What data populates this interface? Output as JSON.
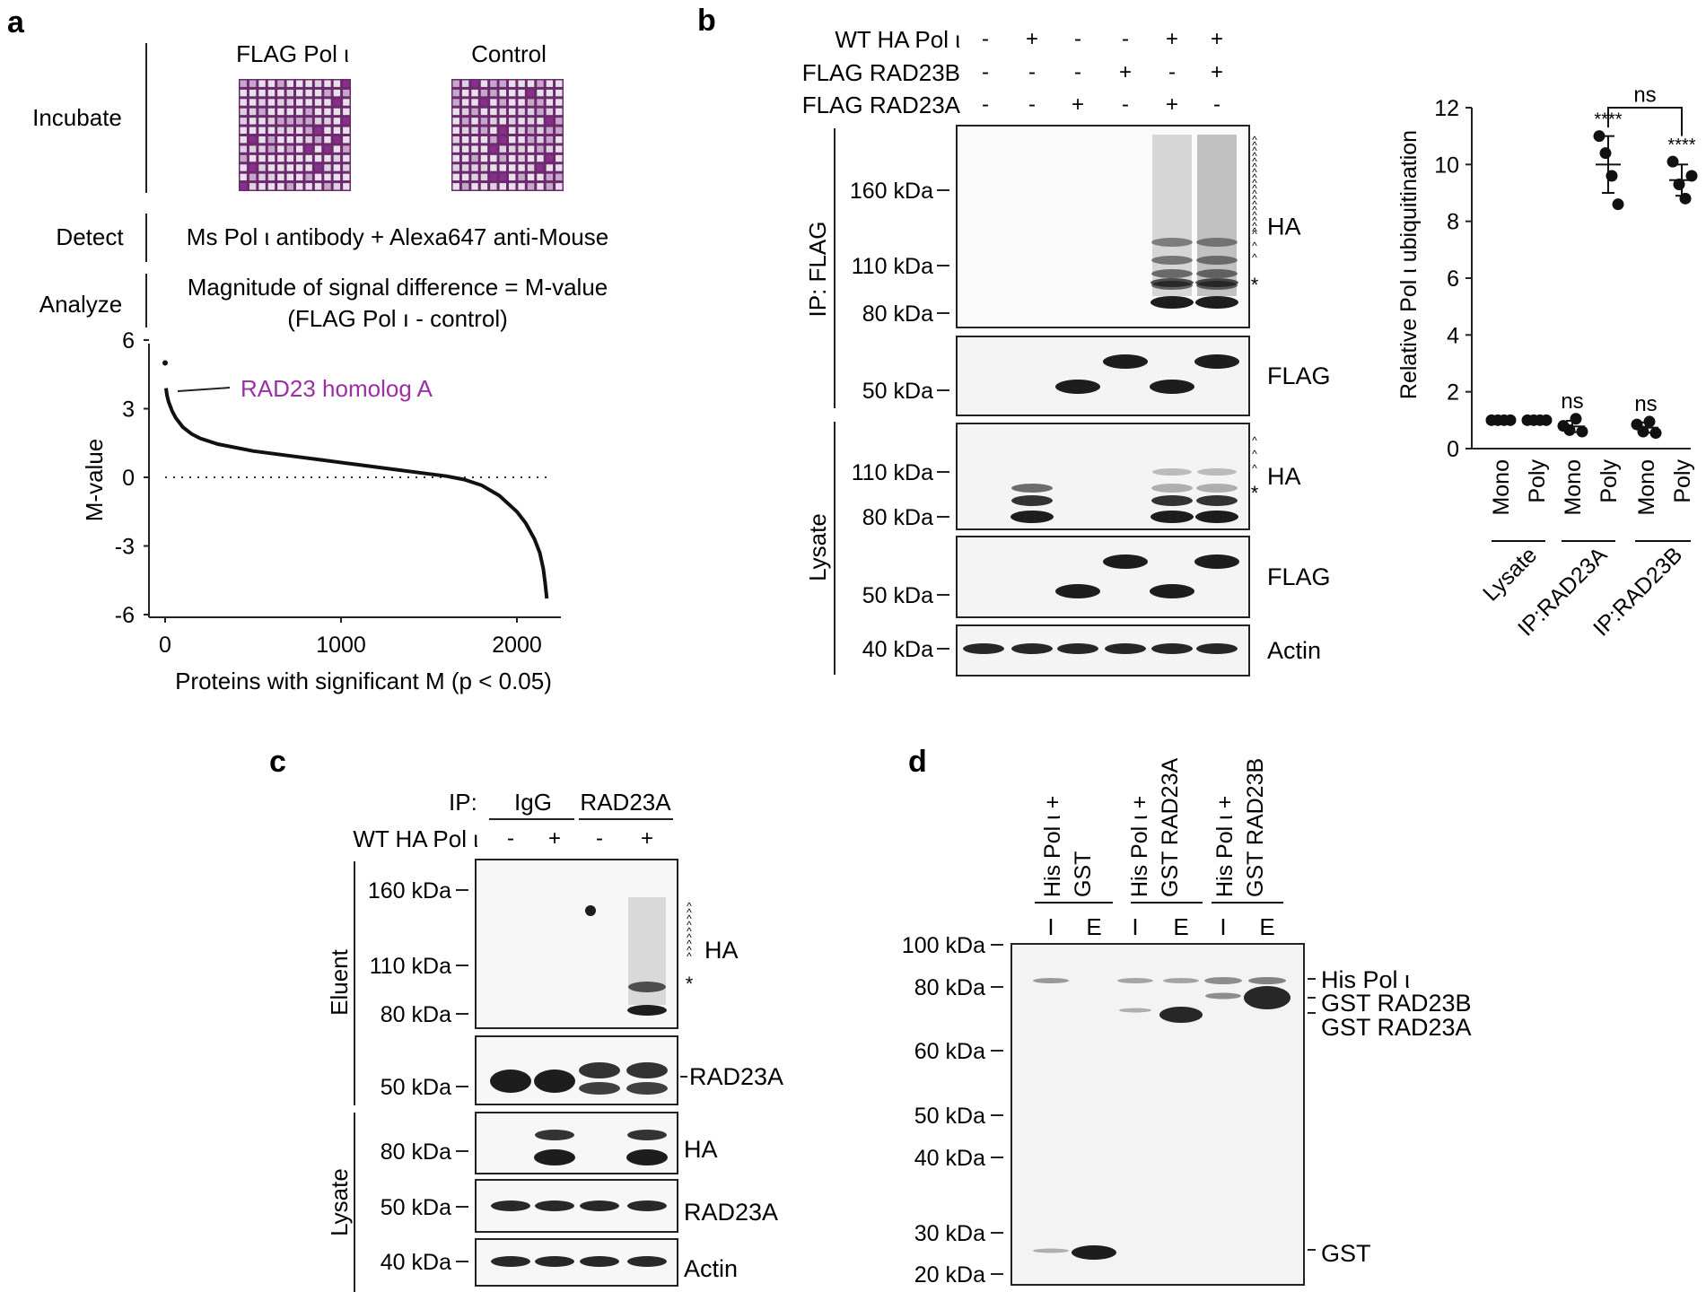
{
  "panel_a": {
    "letter": "a",
    "flag_label": "FLAG Pol ι",
    "control_label": "Control",
    "incubate": "Incubate",
    "detect": "Detect",
    "detect_text": "Ms Pol ι antibody + Alexa647 anti-Mouse",
    "analyze": "Analyze",
    "analyze_text1": "Magnitude of signal difference = M-value",
    "analyze_text2": "(FLAG Pol ı - control)",
    "annotation": "RAD23 homolog A",
    "annotation_color": "#9b2fa3",
    "array_color": "#6b2a6b"
  },
  "panel_b": {
    "letter": "b",
    "row_labels": [
      "WT HA Pol ι",
      "FLAG RAD23B",
      "FLAG RAD23A"
    ],
    "row_signs": [
      [
        "-",
        "+",
        "-",
        "-",
        "+",
        "+"
      ],
      [
        "-",
        "-",
        "-",
        "+",
        "-",
        "+"
      ],
      [
        "-",
        "-",
        "+",
        "-",
        "+",
        "-"
      ]
    ],
    "group_ip": "IP: FLAG",
    "group_lysate": "Lysate",
    "blots": [
      {
        "name": "HA",
        "markers": [
          "160 kDa",
          "110 kDa",
          "80 kDa"
        ]
      },
      {
        "name": "FLAG",
        "markers": [
          "50 kDa"
        ]
      },
      {
        "name": "HA",
        "markers": [
          "110 kDa",
          "80 kDa"
        ]
      },
      {
        "name": "FLAG",
        "markers": [
          "50 kDa"
        ]
      },
      {
        "name": "Actin",
        "markers": [
          "40 kDa"
        ]
      }
    ],
    "star": "*",
    "caret": "^"
  },
  "panel_c": {
    "letter": "c",
    "ip_label": "IP:",
    "ip_groups": [
      "IgG",
      "RAD23A"
    ],
    "row_label": "WT HA Pol ι",
    "signs": [
      "-",
      "+",
      "-",
      "+"
    ],
    "group_eluent": "Eluent",
    "group_lysate": "Lysate",
    "blots": [
      {
        "name": "HA",
        "markers": [
          "160 kDa",
          "110 kDa",
          "80 kDa"
        ]
      },
      {
        "name": "RAD23A",
        "markers": [
          "50 kDa"
        ]
      },
      {
        "name": "HA",
        "markers": [
          "80 kDa"
        ]
      },
      {
        "name": "RAD23A",
        "markers": [
          "50 kDa"
        ]
      },
      {
        "name": "Actin",
        "markers": [
          "40 kDa"
        ]
      }
    ],
    "star": "*"
  },
  "panel_d": {
    "letter": "d",
    "lanes": [
      {
        "line1": "His Pol ι +",
        "line2": "GST"
      },
      {
        "line1": "His Pol ι +",
        "line2": "GST RAD23A"
      },
      {
        "line1": "His Pol ι +",
        "line2": "GST RAD23B"
      }
    ],
    "lane_codes": [
      "I",
      "E",
      "I",
      "E",
      "I",
      "E"
    ],
    "markers": [
      "100 kDa",
      "80 kDa",
      "60 kDa",
      "50 kDa",
      "40 kDa",
      "30 kDa",
      "20 kDa"
    ],
    "band_labels": [
      "His Pol ι",
      "GST RAD23B",
      "GST RAD23A",
      "GST"
    ]
  },
  "chart_data": [
    {
      "type": "scatter",
      "title": "",
      "xlabel": "Proteins with significant M (p < 0.05)",
      "ylabel": "M-value",
      "xlim": [
        0,
        2200
      ],
      "ylim": [
        -6,
        6
      ],
      "xticks": [
        "0",
        "1000",
        "2000"
      ],
      "yticks": [
        "6",
        "3",
        "0",
        "-3",
        "-6"
      ],
      "reference_line": {
        "y": 0,
        "style": "dotted"
      },
      "curve": {
        "x": [
          0,
          5,
          10,
          20,
          40,
          60,
          100,
          150,
          200,
          300,
          500,
          700,
          900,
          1100,
          1300,
          1500,
          1600,
          1700,
          1800,
          1900,
          2000,
          2050,
          2100,
          2130,
          2150,
          2160,
          2170
        ],
        "y": [
          5.0,
          3.9,
          3.6,
          3.3,
          2.9,
          2.6,
          2.2,
          1.9,
          1.7,
          1.45,
          1.15,
          0.95,
          0.75,
          0.55,
          0.35,
          0.15,
          0.05,
          -0.1,
          -0.35,
          -0.8,
          -1.5,
          -2.0,
          -2.7,
          -3.3,
          -4.0,
          -4.6,
          -5.3
        ]
      }
    },
    {
      "type": "scatter",
      "title": "",
      "ylabel": "Relative Pol ι ubiquitination",
      "ylim": [
        0,
        12
      ],
      "yticks": [
        "0",
        "2",
        "4",
        "6",
        "8",
        "10",
        "12"
      ],
      "categories": [
        "Mono",
        "Poly",
        "Mono",
        "Poly",
        "Mono",
        "Poly"
      ],
      "groups": [
        "Lysate",
        "IP:RAD23A",
        "IP:RAD23B"
      ],
      "points": [
        [
          1.0,
          1.0,
          1.0,
          1.0
        ],
        [
          1.0,
          1.0,
          1.0,
          1.0
        ],
        [
          0.8,
          0.65,
          1.05,
          0.6
        ],
        [
          11.0,
          10.4,
          9.6,
          8.6
        ],
        [
          0.85,
          0.6,
          0.95,
          0.55
        ],
        [
          10.1,
          9.3,
          8.8,
          9.6
        ]
      ],
      "mean": [
        1.0,
        1.0,
        0.78,
        10.0,
        0.74,
        9.45
      ],
      "sd": [
        0.0,
        0.0,
        0.2,
        1.0,
        0.18,
        0.55
      ],
      "annotations": [
        "",
        "",
        "ns",
        "****",
        "ns",
        "****"
      ],
      "bracket_label": "ns"
    }
  ]
}
